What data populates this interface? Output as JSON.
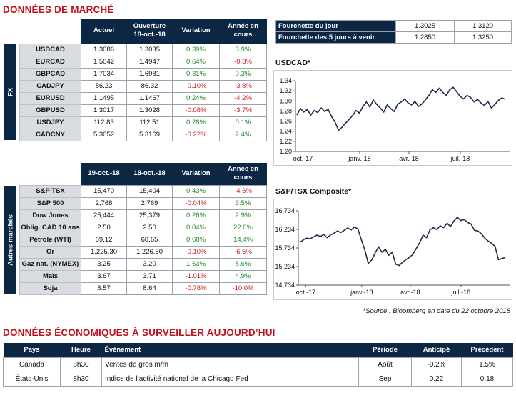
{
  "market": {
    "title": "DONNÉES DE MARCHÉ",
    "fx_label": "FX",
    "other_label": "Autres marchés",
    "fx_headers": [
      "Actuel",
      "Ouverture\n18-oct.-18",
      "Variation",
      "Année en\ncours"
    ],
    "fx_rows": [
      {
        "name": "USDCAD",
        "cur": "1.3086",
        "open": "1.3035",
        "var": "0.39%",
        "ytd": "3.9%"
      },
      {
        "name": "EURCAD",
        "cur": "1.5042",
        "open": "1.4947",
        "var": "0.64%",
        "ytd": "-0.3%"
      },
      {
        "name": "GBPCAD",
        "cur": "1.7034",
        "open": "1.6981",
        "var": "0.31%",
        "ytd": "0.3%"
      },
      {
        "name": "CADJPY",
        "cur": "86.23",
        "open": "86.32",
        "var": "-0.10%",
        "ytd": "-3.8%"
      },
      {
        "name": "EURUSD",
        "cur": "1.1495",
        "open": "1.1467",
        "var": "0.24%",
        "ytd": "-4.2%"
      },
      {
        "name": "GBPUSD",
        "cur": "1.3017",
        "open": "1.3028",
        "var": "-0.08%",
        "ytd": "-3.7%"
      },
      {
        "name": "USDJPY",
        "cur": "112.83",
        "open": "112.51",
        "var": "0.28%",
        "ytd": "0.1%"
      },
      {
        "name": "CADCNY",
        "cur": "5.3052",
        "open": "5.3169",
        "var": "-0.22%",
        "ytd": "2.4%"
      }
    ],
    "other_headers": [
      "19-oct.-18",
      "18-oct.-18",
      "Variation",
      "Année en\ncours"
    ],
    "other_rows": [
      {
        "name": "S&P TSX",
        "cur": "15,470",
        "open": "15,404",
        "var": "0.43%",
        "ytd": "-4.6%"
      },
      {
        "name": "S&P 500",
        "cur": "2,768",
        "open": "2,769",
        "var": "-0.04%",
        "ytd": "3.5%"
      },
      {
        "name": "Dow Jones",
        "cur": "25,444",
        "open": "25,379",
        "var": "0.26%",
        "ytd": "2.9%"
      },
      {
        "name": "Oblig. CAD 10 ans",
        "cur": "2.50",
        "open": "2.50",
        "var": "0.04%",
        "ytd": "22.0%"
      },
      {
        "name": "Pétrole (WTI)",
        "cur": "69.12",
        "open": "68.65",
        "var": "0.68%",
        "ytd": "14.4%"
      },
      {
        "name": "Or",
        "cur": "1,225.30",
        "open": "1,226.50",
        "var": "-0.10%",
        "ytd": "-6.5%"
      },
      {
        "name": "Gaz nat. (NYMEX)",
        "cur": "3.25",
        "open": "3.20",
        "var": "1.63%",
        "ytd": "8.6%"
      },
      {
        "name": "Maïs",
        "cur": "3.67",
        "open": "3.71",
        "var": "-1.01%",
        "ytd": "4.9%"
      },
      {
        "name": "Soja",
        "cur": "8.57",
        "open": "8.64",
        "var": "-0.78%",
        "ytd": "-10.0%"
      }
    ]
  },
  "ranges": [
    {
      "label": "Fourchette du jour",
      "low": "1.3025",
      "high": "1.3120"
    },
    {
      "label": "Fourchette des 5 jours à venir",
      "low": "1.2850",
      "high": "1.3250"
    }
  ],
  "chart_data": [
    {
      "type": "line",
      "title": "USDCAD*",
      "x_ticks": [
        "oct.-17",
        "janv.-18",
        "avr.-18",
        "juil.-18"
      ],
      "y_ticks": [
        "1.20",
        "1.22",
        "1.24",
        "1.26",
        "1.28",
        "1.30",
        "1.32",
        "1.34"
      ],
      "ylim": [
        1.2,
        1.34
      ],
      "color": "#1c2c44",
      "series": [
        {
          "values": [
            1.272,
            1.285,
            1.278,
            1.283,
            1.272,
            1.281,
            1.277,
            1.286,
            1.279,
            1.283,
            1.269,
            1.258,
            1.242,
            1.248,
            1.256,
            1.263,
            1.271,
            1.281,
            1.276,
            1.289,
            1.298,
            1.288,
            1.302,
            1.293,
            1.286,
            1.278,
            1.292,
            1.285,
            1.279,
            1.293,
            1.298,
            1.304,
            1.296,
            1.292,
            1.299,
            1.289,
            1.294,
            1.302,
            1.311,
            1.322,
            1.317,
            1.325,
            1.317,
            1.311,
            1.322,
            1.327,
            1.318,
            1.309,
            1.304,
            1.311,
            1.307,
            1.298,
            1.303,
            1.296,
            1.291,
            1.299,
            1.286,
            1.293,
            1.301,
            1.306,
            1.303
          ]
        }
      ]
    },
    {
      "type": "line",
      "title": "S&P/TSX Composite*",
      "x_ticks": [
        "oct.-17",
        "janv.-18",
        "avr.-18",
        "juil.-18"
      ],
      "y_ticks": [
        "14,734",
        "15,234",
        "15,734",
        "16,234",
        "16,734"
      ],
      "ylim": [
        14734,
        16734
      ],
      "color": "#1c2c44",
      "series": [
        {
          "values": [
            15880,
            15950,
            16000,
            15980,
            16030,
            16080,
            16040,
            16100,
            16010,
            16090,
            16130,
            16190,
            16150,
            16210,
            16270,
            16220,
            16300,
            16240,
            15950,
            15680,
            15320,
            15410,
            15600,
            15760,
            15620,
            15700,
            15540,
            15620,
            15300,
            15260,
            15350,
            15420,
            15480,
            15560,
            15720,
            15880,
            16080,
            16010,
            16220,
            16280,
            16230,
            16330,
            16280,
            16400,
            16310,
            16460,
            16560,
            16470,
            16500,
            16420,
            16380,
            16210,
            16190,
            16120,
            16000,
            15920,
            15860,
            15780,
            15420,
            15450,
            15480
          ]
        }
      ]
    }
  ],
  "source": "*Source : Bloomberg en date du  22 octobre 2018",
  "economic": {
    "title": "DONNÉES ÉCONOMIQUES À SURVEILLER AUJOURD’HUI",
    "headers": [
      "Pays",
      "Heure",
      "Événement",
      "Période",
      "Anticipé",
      "Précédent"
    ],
    "rows": [
      {
        "pays": "Canada",
        "heure": "8h30",
        "evt": "Ventes de gros m/m",
        "periode": "Août",
        "ant": "-0.2%",
        "prec": "1.5%"
      },
      {
        "pays": "États-Unis",
        "heure": "8h30",
        "evt": "Indice de l’activité national de la Chicago Fed",
        "periode": "Sep",
        "ant": "0.22",
        "prec": "0.18"
      }
    ]
  }
}
